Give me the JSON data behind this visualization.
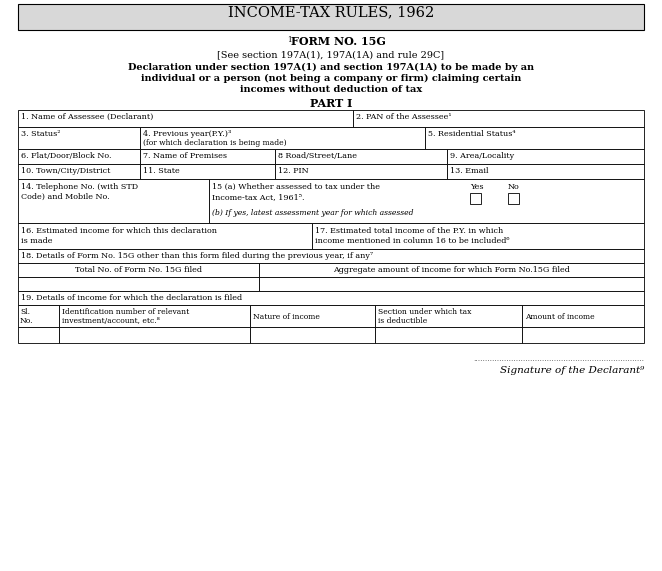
{
  "title": "INCOME-TAX RULES, 1962",
  "title_bg": "#d8d8d8",
  "form_no": "FORM NO. 15G",
  "see_text": "[See section 197A(1), 197A(1A) and rule 29C]",
  "decl1": "Declaration under section 197A(1) and section 197A(1A) to be made by an",
  "decl2": "individual or a person (not being a company or firm) claiming certain",
  "decl3": "incomes without deduction of tax",
  "part": "PART I",
  "bg_color": "#ffffff",
  "border_color": "#000000",
  "sig_dots": "........................................................................",
  "sig_text": "Signature of the Declarant⁹"
}
